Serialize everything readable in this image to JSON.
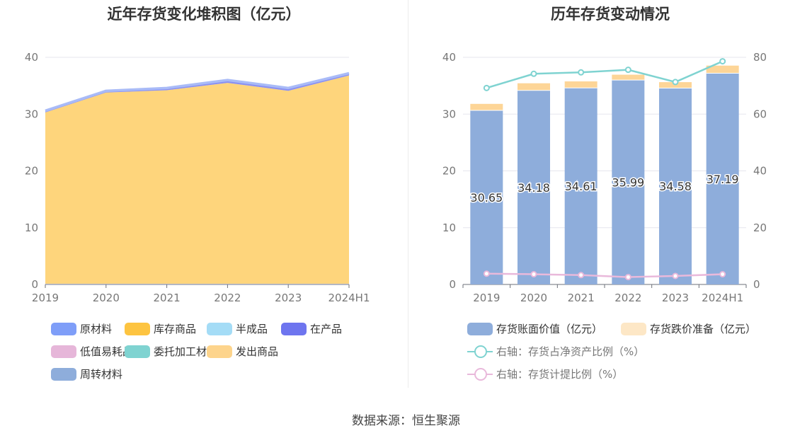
{
  "source": "数据来源：恒生聚源",
  "chart_data": [
    {
      "type": "area",
      "stacked": true,
      "title": "近年存货变化堆积图（亿元）",
      "categories": [
        "2019",
        "2020",
        "2021",
        "2022",
        "2023",
        "2024H1"
      ],
      "ylim": [
        0,
        40
      ],
      "yticks": [
        "0",
        "10",
        "20",
        "30",
        "40"
      ],
      "grid": true,
      "legend_position": "bottom",
      "series": [
        {
          "name": "原材料",
          "color": "#7f9ef8",
          "values": [
            0.1,
            0.1,
            0.1,
            0.1,
            0.1,
            0.1
          ]
        },
        {
          "name": "库存商品",
          "color": "#fdc441",
          "values": [
            30.2,
            33.7,
            34.1,
            35.4,
            34.0,
            36.7
          ]
        },
        {
          "name": "半成品",
          "color": "#a4dcf6",
          "values": [
            0,
            0,
            0,
            0,
            0,
            0
          ]
        },
        {
          "name": "在产品",
          "color": "#6e75ef",
          "values": [
            0.2,
            0.2,
            0.3,
            0.4,
            0.4,
            0.3
          ]
        },
        {
          "name": "低值易耗品",
          "color": "#e6b6d9",
          "values": [
            0,
            0,
            0,
            0,
            0,
            0
          ]
        },
        {
          "name": "委托加工材料",
          "color": "#7fd3d1",
          "values": [
            0.1,
            0.1,
            0.1,
            0.1,
            0.1,
            0.1
          ]
        },
        {
          "name": "发出商品",
          "color": "#fdd48c",
          "values": [
            0,
            0,
            0,
            0,
            0,
            0
          ]
        },
        {
          "name": "周转材料",
          "color": "#8eaddb",
          "values": [
            0,
            0,
            0,
            0,
            0,
            0
          ]
        }
      ],
      "total_line": {
        "color": "#a9bbf7",
        "values": [
          30.6,
          34.1,
          34.6,
          36.0,
          34.6,
          37.2
        ]
      }
    },
    {
      "type": "bar",
      "stacked": true,
      "title": "历年存货变动情况",
      "categories": [
        "2019",
        "2020",
        "2021",
        "2022",
        "2023",
        "2024H1"
      ],
      "ylim": [
        0,
        40
      ],
      "yticks": [
        "0",
        "10",
        "20",
        "30",
        "40"
      ],
      "y2lim": [
        0,
        80
      ],
      "y2ticks": [
        "0",
        "20",
        "40",
        "60",
        "80"
      ],
      "grid": true,
      "legend_position": "bottom",
      "series": [
        {
          "name": "存货账面价值（亿元）",
          "color": "#8eaddb",
          "values": [
            30.65,
            34.18,
            34.61,
            35.99,
            34.58,
            37.19
          ],
          "labels": [
            "30.65",
            "34.18",
            "34.61",
            "35.99",
            "34.58",
            "37.19"
          ]
        },
        {
          "name": "存货跌价准备（亿元）",
          "color": "#fdd597",
          "legend_color": "#fde7c6",
          "values": [
            1.15,
            1.25,
            1.15,
            0.95,
            1.05,
            1.35
          ]
        }
      ],
      "lines": [
        {
          "name": "右轴：存货占净资产比例（%）",
          "axis": "right",
          "color": "#7fd3d1",
          "values": [
            69.2,
            74.2,
            74.7,
            75.6,
            71.3,
            78.6
          ]
        },
        {
          "name": "右轴：存货计提比例（%）",
          "axis": "right",
          "color": "#e9b9db",
          "values": [
            3.8,
            3.6,
            3.3,
            2.6,
            3.0,
            3.6
          ]
        }
      ]
    }
  ]
}
